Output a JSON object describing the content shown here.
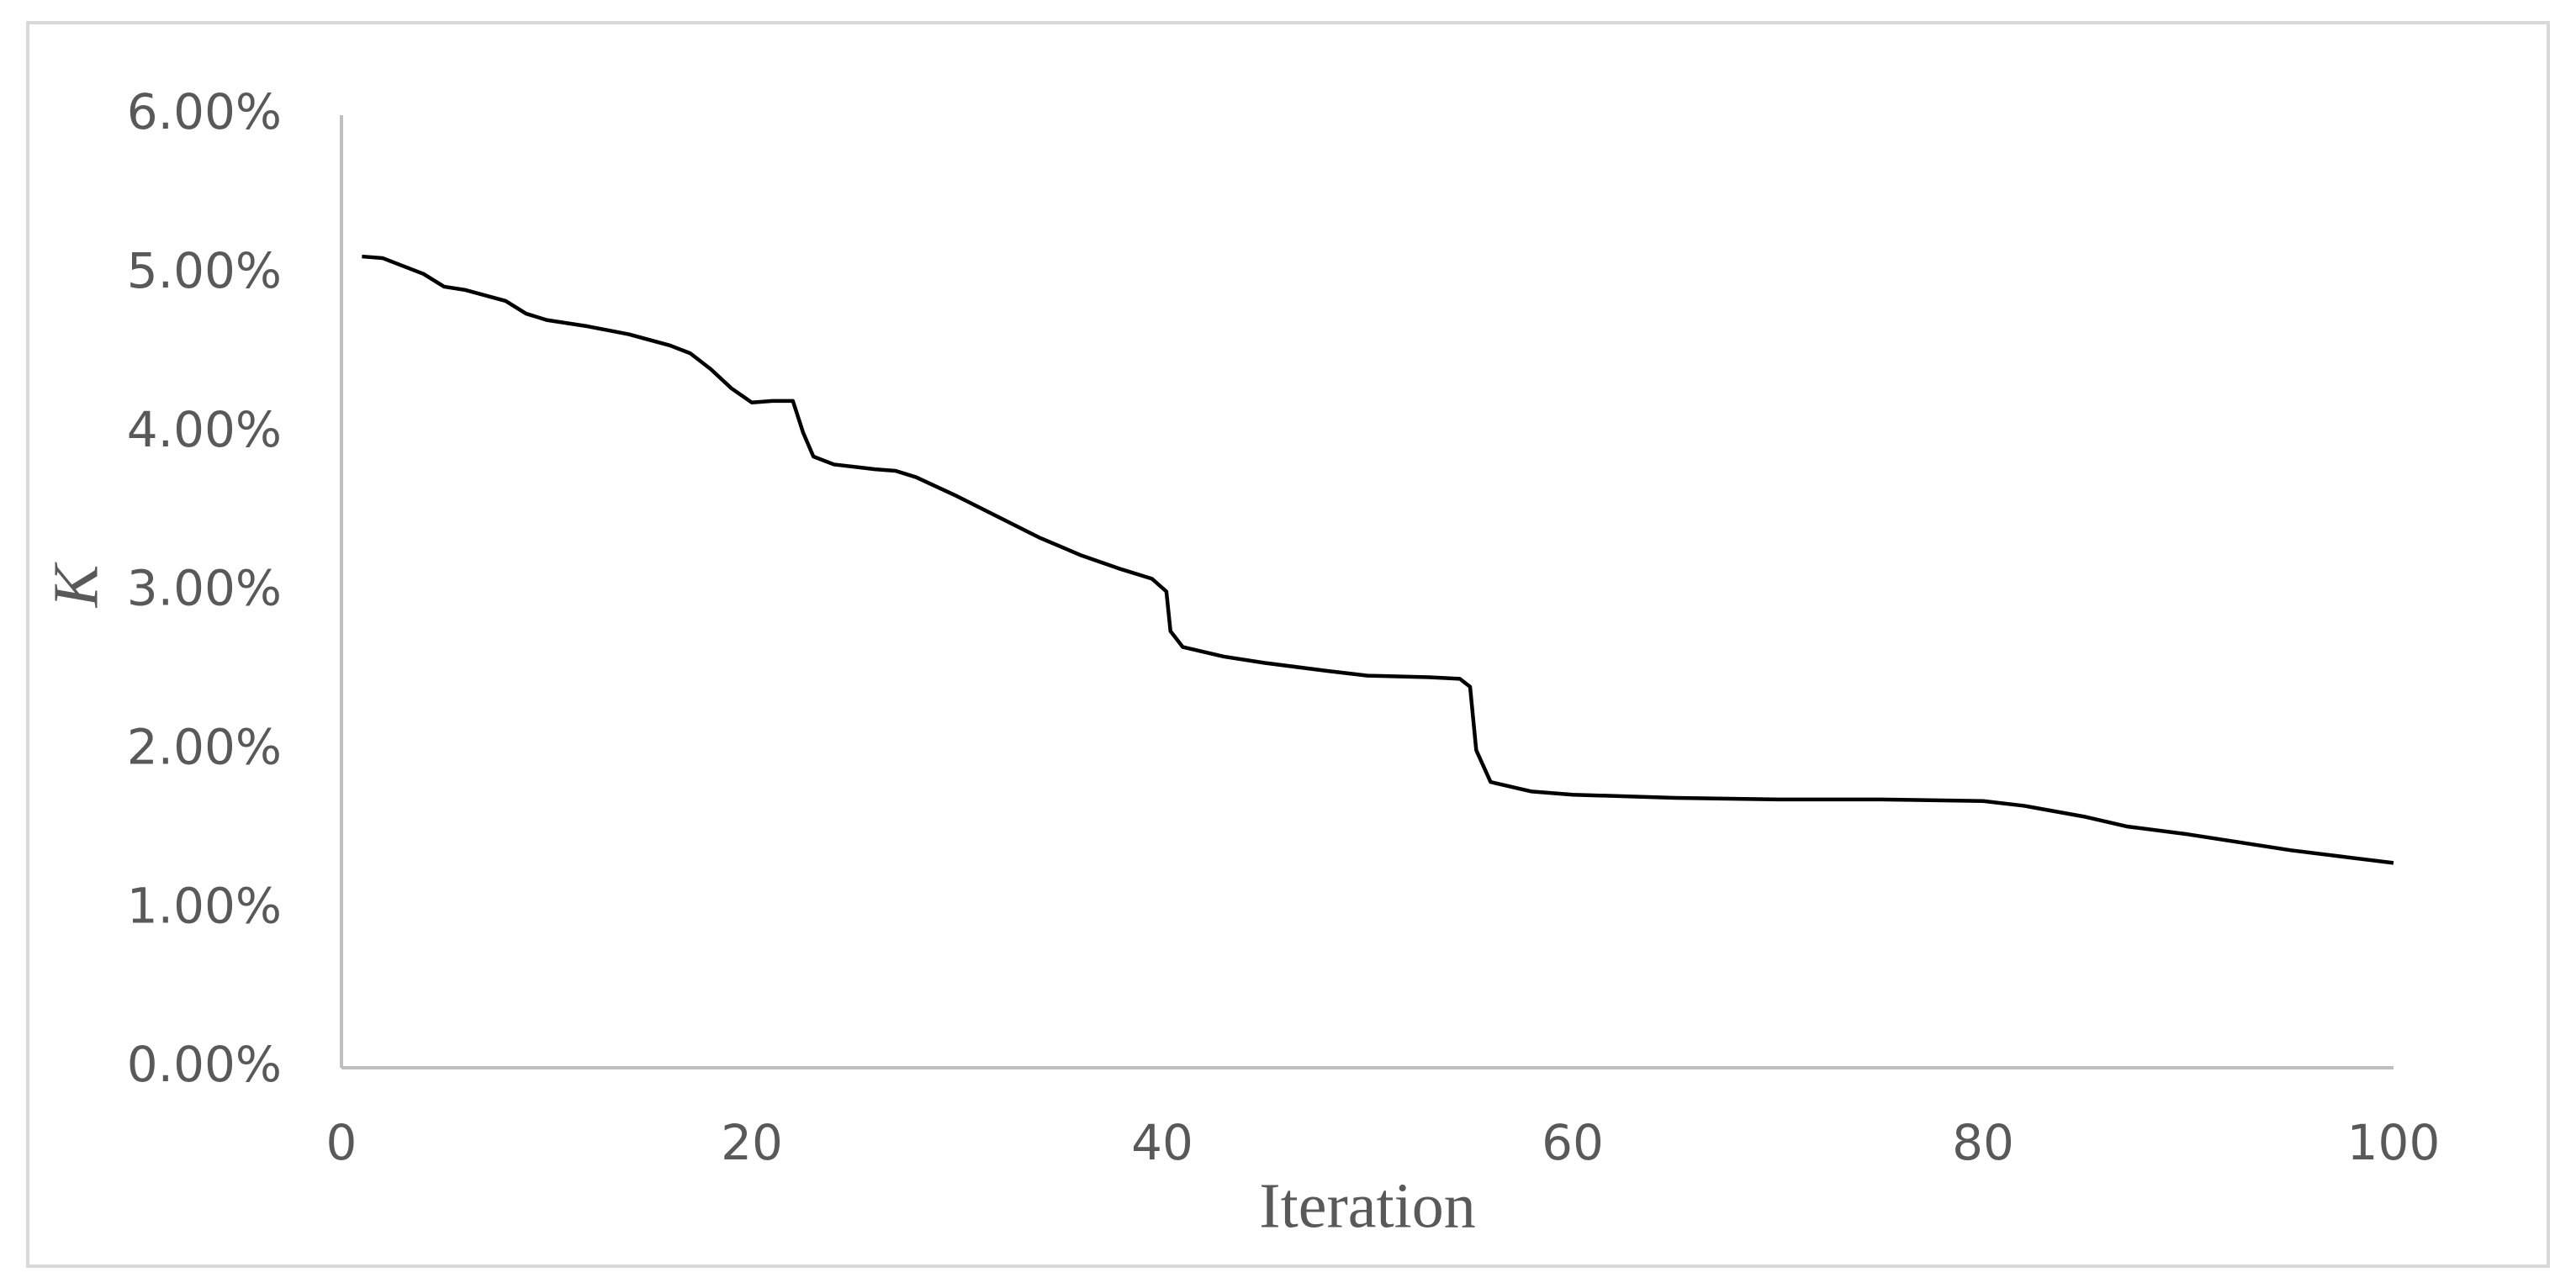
{
  "chart_data": {
    "type": "line",
    "xlabel": "Iteration",
    "ylabel": "K",
    "x": [
      1,
      2,
      4,
      5,
      6,
      8,
      9,
      10,
      12,
      14,
      16,
      17,
      18,
      19,
      20,
      21,
      22,
      22.5,
      23,
      24,
      26,
      27,
      28,
      30,
      32,
      34,
      36,
      38,
      39.5,
      40.2,
      40.4,
      41,
      43,
      45,
      48,
      50,
      53,
      54.5,
      55,
      55.3,
      56,
      58,
      60,
      65,
      70,
      75,
      80,
      82,
      85,
      87,
      90,
      95,
      100
    ],
    "values": [
      5.11,
      5.1,
      5.0,
      4.92,
      4.9,
      4.83,
      4.75,
      4.71,
      4.67,
      4.62,
      4.55,
      4.5,
      4.4,
      4.28,
      4.19,
      4.2,
      4.2,
      4.0,
      3.85,
      3.8,
      3.77,
      3.76,
      3.72,
      3.6,
      3.47,
      3.34,
      3.23,
      3.14,
      3.08,
      3.0,
      2.75,
      2.65,
      2.59,
      2.55,
      2.5,
      2.47,
      2.46,
      2.45,
      2.4,
      2.0,
      1.8,
      1.74,
      1.72,
      1.7,
      1.69,
      1.69,
      1.68,
      1.65,
      1.58,
      1.52,
      1.47,
      1.37,
      1.29
    ],
    "color": "#000000",
    "xlim": [
      0,
      100
    ],
    "xticks": [
      0,
      20,
      40,
      60,
      80,
      100
    ],
    "ylim": [
      0,
      6
    ],
    "yticks": [
      {
        "value": 0,
        "label": "0.00%"
      },
      {
        "value": 1,
        "label": "1.00%"
      },
      {
        "value": 2,
        "label": "2.00%"
      },
      {
        "value": 3,
        "label": "3.00%"
      },
      {
        "value": 4,
        "label": "4.00%"
      },
      {
        "value": 5,
        "label": "5.00%"
      },
      {
        "value": 6,
        "label": "6.00%"
      }
    ]
  }
}
